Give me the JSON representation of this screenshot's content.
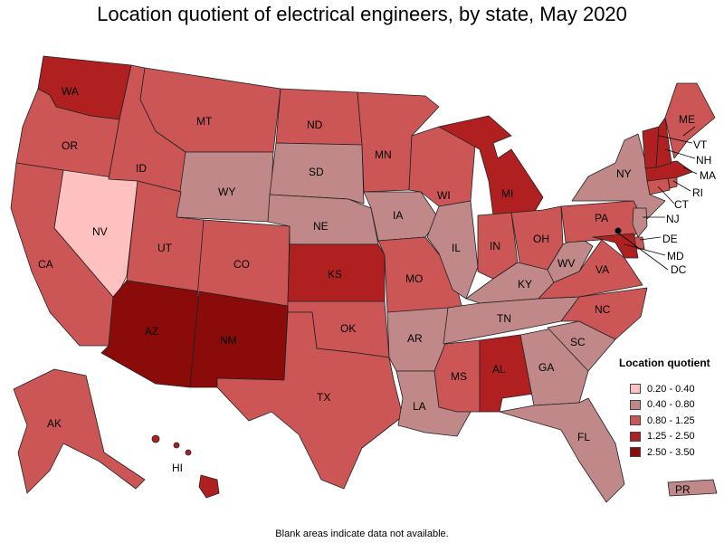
{
  "title": "Location quotient of electrical engineers, by state, May 2020",
  "footnote": "Blank areas indicate data not available.",
  "legend": {
    "title": "Location quotient",
    "items": [
      {
        "label": "0.20 - 0.40",
        "color": "#ffc0c0"
      },
      {
        "label": "0.40 - 0.80",
        "color": "#c08888"
      },
      {
        "label": "0.80 - 1.25",
        "color": "#cc5555"
      },
      {
        "label": "1.25 - 2.50",
        "color": "#b02020"
      },
      {
        "label": "2.50 - 3.50",
        "color": "#8b0a0a"
      }
    ]
  },
  "states": {
    "WA": {
      "label": "WA",
      "cls": 3
    },
    "OR": {
      "label": "OR",
      "cls": 2
    },
    "CA": {
      "label": "CA",
      "cls": 2
    },
    "NV": {
      "label": "NV",
      "cls": 0
    },
    "ID": {
      "label": "ID",
      "cls": 2
    },
    "MT": {
      "label": "MT",
      "cls": 2
    },
    "WY": {
      "label": "WY",
      "cls": 1
    },
    "UT": {
      "label": "UT",
      "cls": 2
    },
    "AZ": {
      "label": "AZ",
      "cls": 4
    },
    "CO": {
      "label": "CO",
      "cls": 2
    },
    "NM": {
      "label": "NM",
      "cls": 4
    },
    "ND": {
      "label": "ND",
      "cls": 2
    },
    "SD": {
      "label": "SD",
      "cls": 1
    },
    "NE": {
      "label": "NE",
      "cls": 1
    },
    "KS": {
      "label": "KS",
      "cls": 3
    },
    "OK": {
      "label": "OK",
      "cls": 2
    },
    "TX": {
      "label": "TX",
      "cls": 2
    },
    "MN": {
      "label": "MN",
      "cls": 2
    },
    "IA": {
      "label": "IA",
      "cls": 1
    },
    "MO": {
      "label": "MO",
      "cls": 2
    },
    "AR": {
      "label": "AR",
      "cls": 1
    },
    "LA": {
      "label": "LA",
      "cls": 1
    },
    "WI": {
      "label": "WI",
      "cls": 2
    },
    "IL": {
      "label": "IL",
      "cls": 1
    },
    "MI": {
      "label": "MI",
      "cls": 3
    },
    "IN": {
      "label": "IN",
      "cls": 2
    },
    "OH": {
      "label": "OH",
      "cls": 2
    },
    "KY": {
      "label": "KY",
      "cls": 1
    },
    "TN": {
      "label": "TN",
      "cls": 1
    },
    "MS": {
      "label": "MS",
      "cls": 2
    },
    "AL": {
      "label": "AL",
      "cls": 3
    },
    "GA": {
      "label": "GA",
      "cls": 1
    },
    "FL": {
      "label": "FL",
      "cls": 1
    },
    "SC": {
      "label": "SC",
      "cls": 1
    },
    "NC": {
      "label": "NC",
      "cls": 2
    },
    "VA": {
      "label": "VA",
      "cls": 2
    },
    "WV": {
      "label": "WV",
      "cls": 1
    },
    "PA": {
      "label": "PA",
      "cls": 2
    },
    "NY": {
      "label": "NY",
      "cls": 1
    },
    "ME": {
      "label": "ME",
      "cls": 2
    },
    "VT": {
      "label": "VT",
      "cls": 3
    },
    "NH": {
      "label": "NH",
      "cls": 3
    },
    "MA": {
      "label": "MA",
      "cls": 3
    },
    "RI": {
      "label": "RI",
      "cls": 2
    },
    "CT": {
      "label": "CT",
      "cls": 2
    },
    "NJ": {
      "label": "NJ",
      "cls": 1
    },
    "DE": {
      "label": "DE",
      "cls": 2
    },
    "MD": {
      "label": "MD",
      "cls": 3
    },
    "DC": {
      "label": "DC",
      "cls": 2
    },
    "AK": {
      "label": "AK",
      "cls": 2
    },
    "HI": {
      "label": "HI",
      "cls": 3
    },
    "PR": {
      "label": "PR",
      "cls": 1
    }
  }
}
